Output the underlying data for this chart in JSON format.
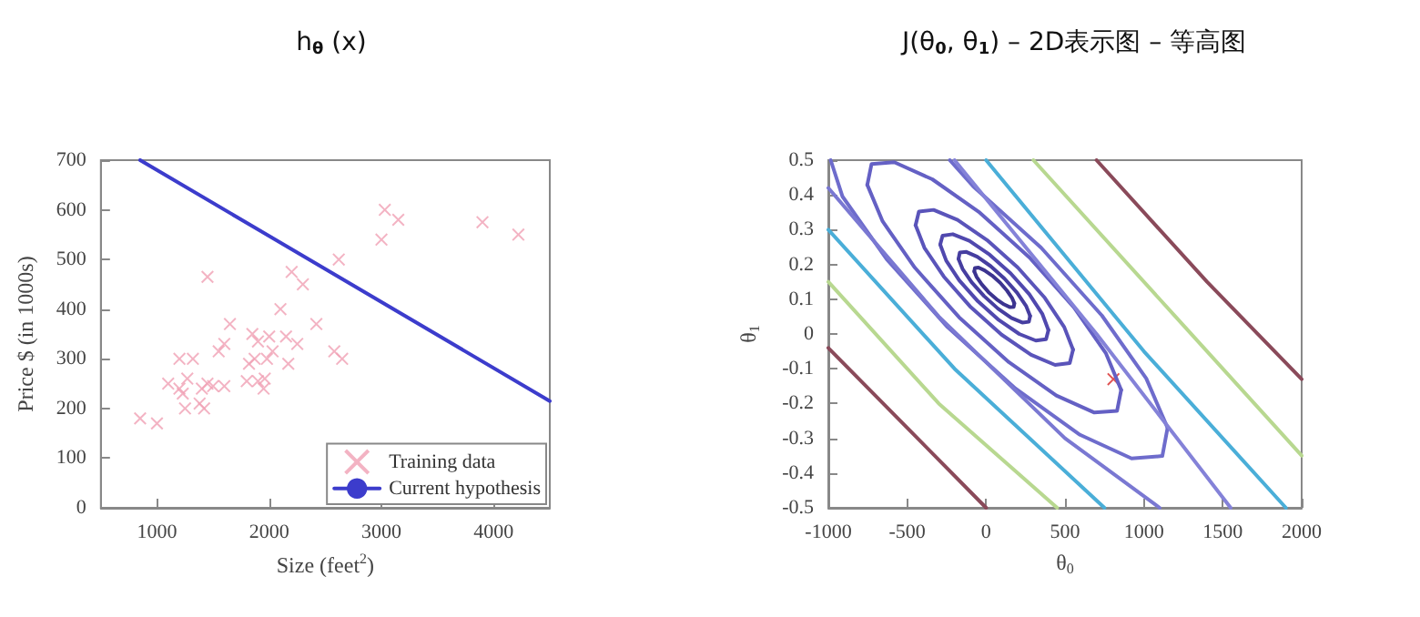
{
  "chart_data": [
    {
      "type": "scatter",
      "title": "h$_{θ}$ (x)",
      "xlabel": "Size (feet$^{2}$)",
      "ylabel": "Price $ (in 1000s)",
      "xlim": [
        500,
        4500
      ],
      "xticks": [
        1000,
        2000,
        3000,
        4000
      ],
      "ylim": [
        0,
        700
      ],
      "yticks": [
        0,
        100,
        200,
        300,
        400,
        500,
        600,
        700
      ],
      "grid": false,
      "legend": "bottom right",
      "series": [
        {
          "name": "Training data",
          "type": "scatter",
          "marker": "cross",
          "color": "#f0a0b4",
          "x": [
            850,
            1000,
            1100,
            1200,
            1200,
            1230,
            1250,
            1270,
            1320,
            1380,
            1400,
            1420,
            1450,
            1450,
            1500,
            1550,
            1600,
            1600,
            1650,
            1800,
            1820,
            1850,
            1870,
            1900,
            1900,
            1950,
            1960,
            1980,
            2000,
            2030,
            2100,
            2150,
            2170,
            2200,
            2250,
            2300,
            2420,
            2580,
            2620,
            2650,
            3000,
            3030,
            3150,
            3900,
            4220
          ],
          "values": [
            180,
            170,
            250,
            300,
            240,
            230,
            200,
            260,
            300,
            210,
            240,
            200,
            250,
            465,
            245,
            315,
            330,
            245,
            370,
            255,
            290,
            350,
            300,
            335,
            255,
            240,
            260,
            300,
            345,
            315,
            400,
            345,
            290,
            475,
            330,
            450,
            370,
            315,
            500,
            300,
            540,
            600,
            580,
            575,
            550
          ]
        },
        {
          "name": "Current hypothesis",
          "type": "line",
          "marker": "none",
          "color": "#3c3ccc",
          "x": [
            850,
            4500
          ],
          "values": [
            700,
            215
          ]
        }
      ]
    },
    {
      "type": "line",
      "title": "J(θ$_{0}$, θ$_{1}$) – 2D表示图 – 等高图",
      "xlabel": "θ$_{0}$",
      "ylabel": "θ$_{1}$",
      "xlim": [
        -1000,
        2000
      ],
      "xticks": [
        -1000,
        -500,
        0,
        500,
        1000,
        1500,
        2000
      ],
      "ylim": [
        -0.5,
        0.5
      ],
      "yticks": [
        -0.5,
        -0.4,
        -0.3,
        -0.2,
        -0.1,
        0,
        0.1,
        0.2,
        0.3,
        0.4,
        0.5
      ],
      "grid": false,
      "marker": "none",
      "series": [
        {
          "color": "#3c3490",
          "x": [
            -75,
            -71,
            -48,
            -10,
            38,
            88,
            132,
            164,
            179
          ],
          "values": [
            0.18,
            0.19,
            0.191,
            0.183,
            0.168,
            0.148,
            0.125,
            0.104,
            0.088
          ]
        },
        {
          "color": "#3c3490",
          "x": [
            -75,
            -60,
            -28,
            16,
            66,
            114,
            152,
            175,
            179
          ],
          "values": [
            0.18,
            0.164,
            0.143,
            0.12,
            0.1,
            0.085,
            0.077,
            0.078,
            0.088
          ]
        },
        {
          "color": "#463ea0",
          "x": [
            -175,
            -167,
            -125,
            -56,
            29,
            117,
            196,
            253,
            279
          ],
          "values": [
            0.216,
            0.234,
            0.236,
            0.222,
            0.195,
            0.159,
            0.119,
            0.081,
            0.052
          ]
        },
        {
          "color": "#463ea0",
          "x": [
            -175,
            -149,
            -92,
            -13,
            75,
            160,
            229,
            271,
            279
          ],
          "values": [
            0.216,
            0.187,
            0.149,
            0.109,
            0.073,
            0.046,
            0.033,
            0.035,
            0.052
          ]
        },
        {
          "color": "#5048ae",
          "x": [
            -291,
            -276,
            -211,
            -106,
            23,
            156,
            274,
            357,
            395
          ],
          "values": [
            0.257,
            0.283,
            0.287,
            0.268,
            0.228,
            0.174,
            0.114,
            0.057,
            0.011
          ]
        },
        {
          "color": "#5048ae",
          "x": [
            -291,
            -253,
            -170,
            -52,
            81,
            210,
            315,
            380,
            395
          ],
          "values": [
            0.257,
            0.211,
            0.154,
            0.094,
            0.04,
            0,
            -0.019,
            -0.015,
            0.011
          ]
        },
        {
          "color": "#5a54ba",
          "x": [
            -447,
            -426,
            -333,
            -181,
            6,
            201,
            372,
            495,
            551
          ],
          "values": [
            0.313,
            0.352,
            0.357,
            0.328,
            0.27,
            0.191,
            0.104,
            0.02,
            -0.045
          ]
        },
        {
          "color": "#5a54ba",
          "x": [
            -447,
            -391,
            -268,
            -97,
            98,
            285,
            437,
            530,
            551
          ],
          "values": [
            0.313,
            0.248,
            0.165,
            0.077,
            -0.002,
            -0.06,
            -0.089,
            -0.084,
            -0.045
          ]
        },
        {
          "color": "#6460c4",
          "x": [
            -753,
            -726,
            -582,
            -341,
            -40,
            275,
            556,
            760,
            856
          ],
          "values": [
            0.429,
            0.489,
            0.494,
            0.445,
            0.349,
            0.22,
            0.077,
            -0.056,
            -0.161
          ]
        },
        {
          "color": "#6460c4",
          "x": [
            -753,
            -656,
            -452,
            -171,
            144,
            445,
            686,
            830,
            856
          ],
          "values": [
            0.429,
            0.324,
            0.191,
            0.048,
            -0.081,
            -0.177,
            -0.226,
            -0.221,
            -0.161
          ]
        },
        {
          "color": "#6e6ccc",
          "x": [
            -230,
            -82,
            349,
            734,
            1015,
            1150
          ],
          "values": [
            0.5,
            0.425,
            0.248,
            0.053,
            -0.128,
            -0.27
          ]
        },
        {
          "color": "#6e6ccc",
          "x": [
            -985,
            -911,
            -630,
            -245,
            186,
            595,
            922,
            1117,
            1150
          ],
          "values": [
            0.5,
            0.396,
            0.215,
            0.02,
            -0.157,
            -0.29,
            -0.358,
            -0.351,
            -0.27
          ]
        },
        {
          "color": "#7a78d2",
          "x": [
            -1000,
            -300,
            500,
            1100
          ],
          "values": [
            0.42,
            0.05,
            -0.3,
            -0.5
          ]
        },
        {
          "color": "#8482d8",
          "x": [
            -200,
            700,
            1550
          ],
          "values": [
            0.5,
            0,
            -0.5
          ]
        },
        {
          "color": "#4aaed8",
          "x": [
            -1000,
            -200,
            750
          ],
          "values": [
            0.3,
            -0.1,
            -0.5
          ]
        },
        {
          "color": "#4aaed8",
          "x": [
            0,
            1000,
            1900
          ],
          "values": [
            0.5,
            -0.05,
            -0.5
          ]
        },
        {
          "color": "#b8d890",
          "x": [
            -1000,
            -300,
            450
          ],
          "values": [
            0.15,
            -0.2,
            -0.5
          ]
        },
        {
          "color": "#b8d890",
          "x": [
            300,
            1200,
            2000
          ],
          "values": [
            0.5,
            0.05,
            -0.35
          ]
        },
        {
          "color": "#8a4a5a",
          "x": [
            -1000,
            -500,
            0
          ],
          "values": [
            -0.04,
            -0.27,
            -0.5
          ]
        },
        {
          "color": "#8a4a5a",
          "x": [
            700,
            1400,
            2000
          ],
          "values": [
            0.5,
            0.15,
            -0.13
          ]
        },
        {
          "type": "scatter",
          "marker": "cross",
          "color": "#d82828",
          "x": [
            807
          ],
          "values": [
            -0.13
          ]
        }
      ]
    }
  ]
}
